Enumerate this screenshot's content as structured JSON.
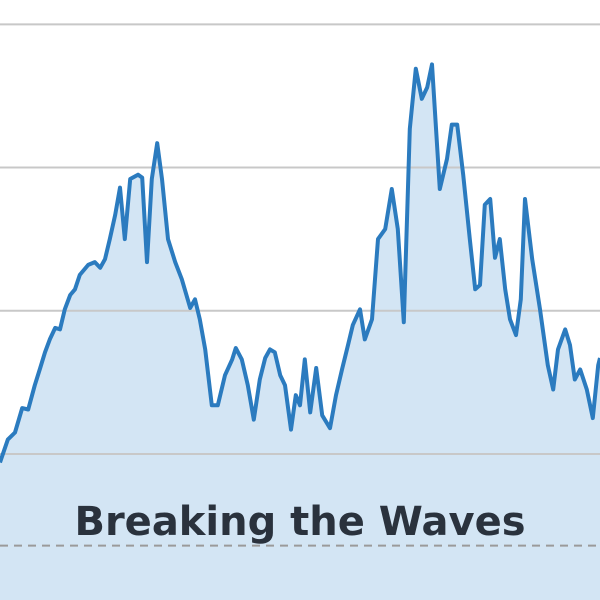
{
  "chart_data": {
    "type": "area",
    "title": "Breaking the Waves",
    "x": [
      0,
      1.3,
      2.5,
      3.7,
      4.7,
      5.8,
      6.7,
      7.5,
      8.3,
      9.2,
      10,
      10.8,
      11.7,
      12.5,
      13.3,
      14.7,
      15.8,
      16.7,
      17.5,
      18.3,
      19.2,
      20,
      20.8,
      21.7,
      23,
      23.7,
      24.5,
      25.3,
      26.2,
      27,
      28,
      29.2,
      30.3,
      31.7,
      32.5,
      33.3,
      34.2,
      35.3,
      36.3,
      37.5,
      38.7,
      39.3,
      40.3,
      41.3,
      42.3,
      43.3,
      44.2,
      45,
      45.8,
      46.7,
      47.5,
      48.5,
      49.3,
      50,
      50.8,
      51.7,
      52.7,
      53.7,
      55,
      56,
      57,
      58,
      58.8,
      60,
      60.8,
      62,
      63,
      64.2,
      65.3,
      66.3,
      67.3,
      68.3,
      69.3,
      70.3,
      71.2,
      72,
      73.3,
      74.5,
      75.3,
      76.2,
      77.2,
      78.3,
      79.2,
      80,
      80.8,
      81.7,
      82.5,
      83.3,
      84.2,
      85,
      86,
      86.8,
      87.5,
      88.7,
      90,
      91.3,
      92.2,
      93,
      94.2,
      95,
      95.8,
      96.7,
      97.8,
      98.8,
      99.7,
      100
    ],
    "series": [
      {
        "color": "#2b7bbf",
        "fill": "#d3e5f4",
        "values": [
          0.94,
          1.1,
          1.15,
          1.32,
          1.31,
          1.48,
          1.6,
          1.71,
          1.8,
          1.88,
          1.87,
          2.01,
          2.11,
          2.15,
          2.25,
          2.32,
          2.34,
          2.3,
          2.36,
          2.5,
          2.67,
          2.86,
          2.5,
          2.92,
          2.95,
          2.93,
          2.34,
          2.92,
          3.17,
          2.92,
          2.5,
          2.34,
          2.22,
          2.02,
          2.08,
          1.94,
          1.73,
          1.34,
          1.34,
          1.55,
          1.66,
          1.74,
          1.66,
          1.48,
          1.24,
          1.52,
          1.67,
          1.73,
          1.71,
          1.55,
          1.48,
          1.17,
          1.41,
          1.34,
          1.66,
          1.29,
          1.6,
          1.27,
          1.18,
          1.41,
          1.59,
          1.76,
          1.9,
          2.01,
          1.8,
          1.94,
          2.5,
          2.57,
          2.85,
          2.57,
          1.92,
          3.27,
          3.69,
          3.48,
          3.56,
          3.72,
          2.85,
          3.06,
          3.3,
          3.3,
          2.95,
          2.5,
          2.15,
          2.18,
          2.74,
          2.78,
          2.37,
          2.5,
          2.15,
          1.94,
          1.83,
          2.08,
          2.78,
          2.36,
          2.01,
          1.62,
          1.45,
          1.73,
          1.87,
          1.76,
          1.52,
          1.59,
          1.45,
          1.25,
          1.62,
          1.67
        ]
      }
    ],
    "xlim": [
      0,
      100
    ],
    "ylim": [
      -0.02,
      4.17
    ],
    "yticks": [
      1,
      2,
      3,
      4
    ],
    "grid": true,
    "reference_line": 0.36
  }
}
